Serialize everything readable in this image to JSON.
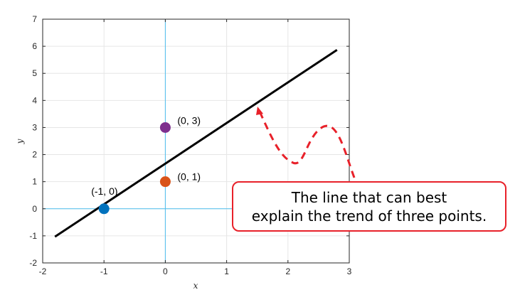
{
  "chart_data": {
    "type": "scatter",
    "xlabel": "x",
    "ylabel": "y",
    "xlim": [
      -2,
      3
    ],
    "ylim": [
      -2,
      7
    ],
    "x_ticks": [
      -2,
      -1,
      0,
      1,
      2,
      3
    ],
    "y_ticks": [
      -2,
      -1,
      0,
      1,
      2,
      3,
      4,
      5,
      6,
      7
    ],
    "grid": true,
    "points": [
      {
        "x": -1,
        "y": 0,
        "label": "(-1, 0)",
        "color": "#0072bd"
      },
      {
        "x": 0,
        "y": 1,
        "label": "(0, 1)",
        "color": "#d95319"
      },
      {
        "x": 0,
        "y": 3,
        "label": "(0, 3)",
        "color": "#7e2f8e"
      }
    ],
    "fit_line": {
      "slope": 1.5,
      "intercept": 1.6667,
      "x_start": -1.8,
      "x_end": 2.8,
      "color": "#000000"
    },
    "reference_lines": {
      "x": 0,
      "y": 0,
      "color": "#4dbeee"
    }
  },
  "annotation": {
    "line1": "The line that can best",
    "line2": "explain the trend of three points.",
    "color": "#e8212a"
  }
}
